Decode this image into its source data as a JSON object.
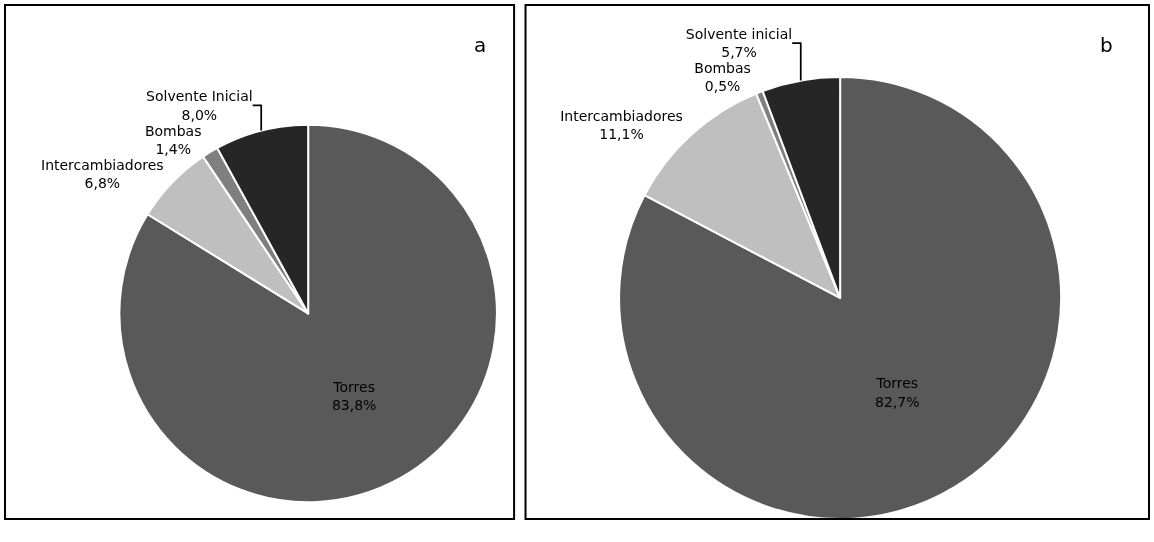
{
  "chart_data": [
    {
      "type": "pie",
      "title": "a",
      "categories": [
        "Torres",
        "Intercambiadores",
        "Bombas",
        "Solvente Inicial"
      ],
      "values": [
        83.8,
        6.8,
        1.4,
        8.0
      ],
      "colors": [
        "#595959",
        "#bfbfbf",
        "#7f7f7f",
        "#262626"
      ],
      "value_labels": [
        "83,8%",
        "6,8%",
        "1,4%",
        "8,0%"
      ]
    },
    {
      "type": "pie",
      "title": "b",
      "categories": [
        "Torres",
        "Intercambiadores",
        "Bombas",
        "Solvente inicial"
      ],
      "values": [
        82.7,
        11.1,
        0.5,
        5.7
      ],
      "colors": [
        "#595959",
        "#bfbfbf",
        "#7f7f7f",
        "#262626"
      ],
      "value_labels": [
        "82,7%",
        "11,1%",
        "0,5%",
        "5,7%"
      ]
    }
  ]
}
